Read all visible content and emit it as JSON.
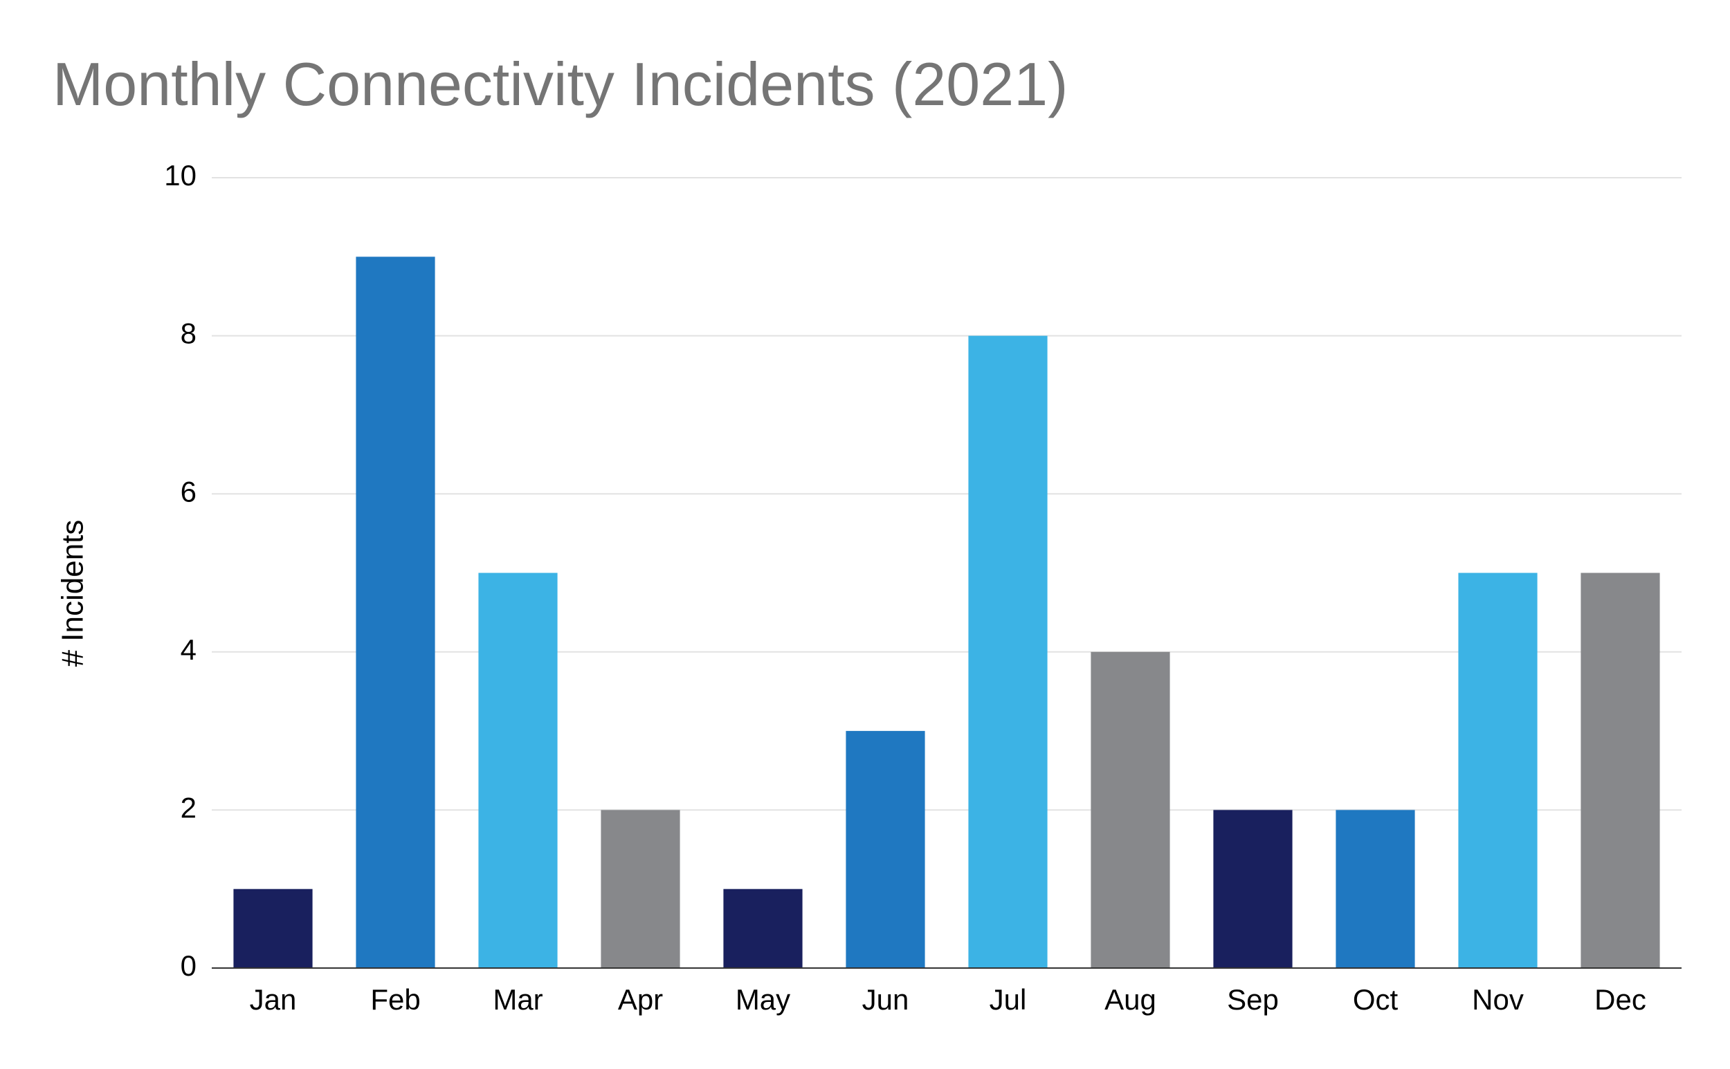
{
  "chart_data": {
    "type": "bar",
    "title": "Monthly Connectivity Incidents (2021)",
    "xlabel": "",
    "ylabel": "# Incidents",
    "categories": [
      "Jan",
      "Feb",
      "Mar",
      "Apr",
      "May",
      "Jun",
      "Jul",
      "Aug",
      "Sep",
      "Oct",
      "Nov",
      "Dec"
    ],
    "values": [
      1,
      9,
      5,
      2,
      1,
      3,
      8,
      4,
      2,
      2,
      5,
      5
    ],
    "bar_colors": [
      "#19205e",
      "#1f78c1",
      "#3cb3e5",
      "#87888b",
      "#19205e",
      "#1f78c1",
      "#3cb3e5",
      "#87888b",
      "#19205e",
      "#1f78c1",
      "#3cb3e5",
      "#87888b"
    ],
    "ylim": [
      0,
      10
    ],
    "yticks": [
      0,
      2,
      4,
      6,
      8,
      10
    ],
    "grid": true,
    "legend": "none"
  }
}
